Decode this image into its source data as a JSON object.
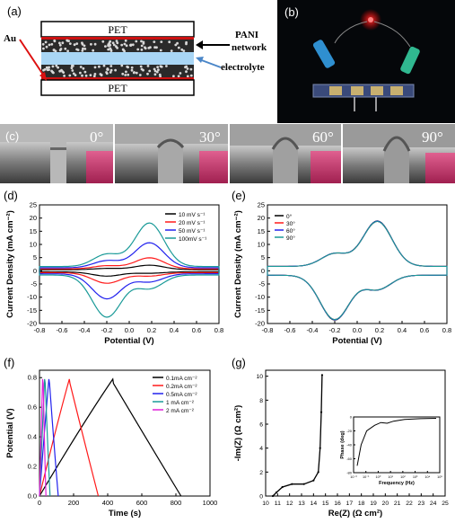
{
  "panels": {
    "a": "(a)",
    "b": "(b)",
    "c": "(c)",
    "d": "(d)",
    "e": "(e)",
    "f": "(f)",
    "g": "(g)"
  },
  "diagram": {
    "pet_top": "PET",
    "pet_bottom": "PET",
    "au": "Au",
    "pani_line1": "PANI",
    "pani_line2": "network",
    "electrolyte": "electrolyte"
  },
  "bend_angles": [
    "0°",
    "30°",
    "60°",
    "90°"
  ],
  "colors": {
    "black": "#000000",
    "red": "#ff1a1a",
    "blue": "#2222ee",
    "teal": "#1a9a98",
    "magenta": "#e020d8",
    "pink_strip": "#d0407a"
  },
  "chart_data": [
    {
      "id": "d",
      "type": "line",
      "xlabel": "Potential (V)",
      "ylabel": "Current Density (mA cm⁻²)",
      "xlim": [
        -0.8,
        0.8
      ],
      "ylim": [
        -20,
        25
      ],
      "xticks": [
        "-0.8",
        "-0.6",
        "-0.4",
        "-0.2",
        "0.0",
        "0.2",
        "0.4",
        "0.6",
        "0.8"
      ],
      "yticks": [
        "-20",
        "-15",
        "-10",
        "-5",
        "0",
        "5",
        "10",
        "15",
        "20",
        "25"
      ],
      "legend": "top-right",
      "series": [
        {
          "name": "10 mV s⁻¹",
          "peak_anodic": 1.7,
          "peak_cathodic": -1.6
        },
        {
          "name": "20 mV s⁻¹",
          "peak_anodic": 4.2,
          "peak_cathodic": -4.0
        },
        {
          "name": "50 mV s⁻¹",
          "peak_anodic": 9.5,
          "peak_cathodic": -9.5
        },
        {
          "name": "100mV s⁻¹",
          "peak_anodic": 16.5,
          "peak_cathodic": -16.0
        }
      ]
    },
    {
      "id": "e",
      "type": "line",
      "xlabel": "Potential (V)",
      "ylabel": "Current Density (mA cm⁻²)",
      "xlim": [
        -0.8,
        0.8
      ],
      "ylim": [
        -20,
        25
      ],
      "xticks": [
        "-0.8",
        "-0.6",
        "-0.4",
        "-0.2",
        "0.0",
        "0.2",
        "0.4",
        "0.6",
        "0.8"
      ],
      "yticks": [
        "-20",
        "-15",
        "-10",
        "-5",
        "0",
        "5",
        "10",
        "15",
        "20",
        "25"
      ],
      "legend": "top-left",
      "series": [
        {
          "name": "0°",
          "peak_anodic": 17.2,
          "peak_cathodic": -17.0
        },
        {
          "name": "30°",
          "peak_anodic": 17.0,
          "peak_cathodic": -16.8
        },
        {
          "name": "60°",
          "peak_anodic": 17.1,
          "peak_cathodic": -16.9
        },
        {
          "name": "90°",
          "peak_anodic": 17.0,
          "peak_cathodic": -16.8
        }
      ]
    },
    {
      "id": "f",
      "type": "line",
      "xlabel": "Time (s)",
      "ylabel": "Potential (V)",
      "xlim": [
        0,
        1000
      ],
      "ylim": [
        0,
        0.85
      ],
      "xticks": [
        "0",
        "200",
        "400",
        "600",
        "800",
        "1000"
      ],
      "yticks": [
        "0.0",
        "0.2",
        "0.4",
        "0.6",
        "0.8"
      ],
      "legend": "top-right",
      "series": [
        {
          "name": "0.1mA cm⁻²",
          "charge_end": 430,
          "discharge_end": 830
        },
        {
          "name": "0.2mA cm⁻²",
          "charge_end": 175,
          "discharge_end": 345
        },
        {
          "name": "0.5mA cm⁻²",
          "charge_end": 55,
          "discharge_end": 110
        },
        {
          "name": "1  mA cm⁻²",
          "charge_end": 30,
          "discharge_end": 62
        },
        {
          "name": "2  mA cm⁻²",
          "charge_end": 18,
          "discharge_end": 38
        }
      ]
    },
    {
      "id": "g",
      "type": "line",
      "xlabel": "Re(Z) (Ω cm²)",
      "ylabel": "-Im(Z) (Ω cm²)",
      "xlim": [
        10,
        25
      ],
      "ylim": [
        0,
        10.5
      ],
      "xticks": [
        "10",
        "11",
        "12",
        "13",
        "14",
        "15",
        "16",
        "17",
        "18",
        "19",
        "20",
        "21",
        "22",
        "23",
        "24",
        "25"
      ],
      "yticks": [
        "0",
        "2",
        "4",
        "6",
        "8",
        "10"
      ],
      "inset": {
        "type": "line",
        "xlabel": "Frequency (Hz)",
        "ylabel": "Phase (deg)",
        "xticks": [
          "10⁻²",
          "10⁻¹",
          "10⁰",
          "10¹",
          "10²",
          "10³",
          "10⁴",
          "10⁵"
        ],
        "yticks": [
          "0",
          "-20",
          "-40",
          "-60",
          "-80"
        ]
      }
    }
  ]
}
